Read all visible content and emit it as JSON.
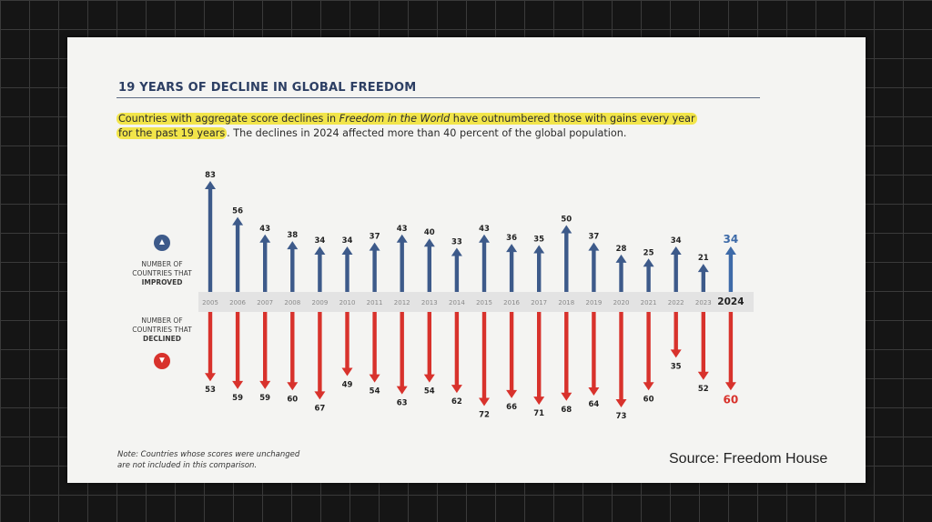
{
  "title": "19 YEARS OF DECLINE IN GLOBAL FREEDOM",
  "subtitle": {
    "highlight_1": "Countries with aggregate score declines in ",
    "italic": "Freedom in the World",
    "highlight_2": " have outnumbered those with gains every year",
    "highlight_3": "for the past 19 years",
    "rest": ". The declines in 2024 affected more than 40 percent of the global population."
  },
  "legend": {
    "improved": {
      "line1": "NUMBER OF",
      "line2": "COUNTRIES THAT",
      "line3": "IMPROVED",
      "icon": "up-arrow-icon"
    },
    "declined": {
      "line1": "NUMBER OF",
      "line2": "COUNTRIES THAT",
      "line3": "DECLINED",
      "icon": "down-arrow-icon"
    }
  },
  "note": {
    "line1": "Note: Countries whose scores were unchanged",
    "line2": "are not included in this comparison."
  },
  "source": "Source: Freedom House",
  "colors": {
    "improved": "#3d5a8a",
    "declined": "#d8322c",
    "highlight": "#f2e54a",
    "highlight_year_improved": "#3d6aa8",
    "highlight_year_declined": "#d8322c",
    "band": "#e3e3e3"
  },
  "chart_data": {
    "type": "bar",
    "categories": [
      "2005",
      "2006",
      "2007",
      "2008",
      "2009",
      "2010",
      "2011",
      "2012",
      "2013",
      "2014",
      "2015",
      "2016",
      "2017",
      "2018",
      "2019",
      "2020",
      "2021",
      "2022",
      "2023",
      "2024"
    ],
    "series": [
      {
        "name": "NUMBER OF COUNTRIES THAT IMPROVED",
        "values": [
          83,
          56,
          43,
          38,
          34,
          34,
          37,
          43,
          40,
          33,
          43,
          36,
          35,
          50,
          37,
          28,
          25,
          34,
          21,
          34
        ]
      },
      {
        "name": "NUMBER OF COUNTRIES THAT DECLINED",
        "values": [
          53,
          59,
          59,
          60,
          67,
          49,
          54,
          63,
          54,
          62,
          72,
          66,
          71,
          68,
          64,
          73,
          60,
          35,
          52,
          60
        ]
      }
    ],
    "highlight_category": "2024"
  }
}
